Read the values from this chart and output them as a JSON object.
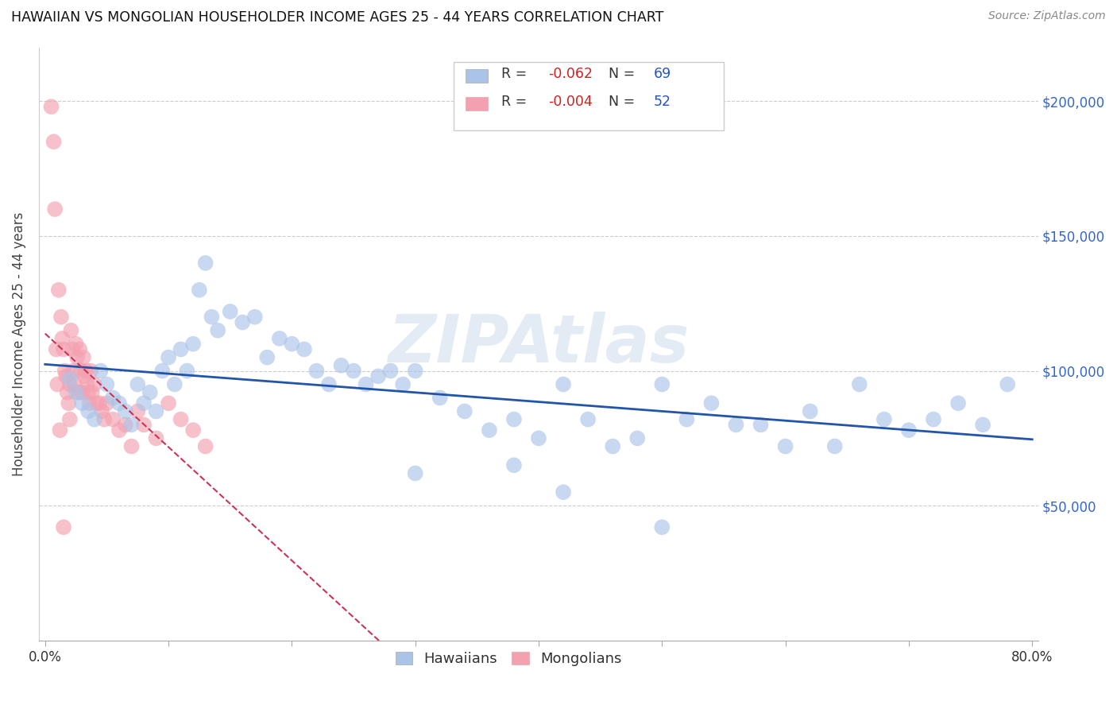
{
  "title": "HAWAIIAN VS MONGOLIAN HOUSEHOLDER INCOME AGES 25 - 44 YEARS CORRELATION CHART",
  "source": "Source: ZipAtlas.com",
  "ylabel_label": "Householder Income Ages 25 - 44 years",
  "ylabel_ticks": [
    0,
    50000,
    100000,
    150000,
    200000
  ],
  "ylabel_tick_labels": [
    "",
    "$50,000",
    "$100,000",
    "$150,000",
    "$200,000"
  ],
  "xlim": [
    -0.005,
    0.805
  ],
  "ylim": [
    0,
    220000
  ],
  "watermark": "ZIPAtlas",
  "blue_color": "#aac4e8",
  "pink_color": "#f4a0b0",
  "blue_line_color": "#2255aa",
  "pink_line_color": "#cc3355",
  "hawaiians_x": [
    0.02,
    0.025,
    0.03,
    0.035,
    0.04,
    0.045,
    0.05,
    0.055,
    0.06,
    0.065,
    0.07,
    0.075,
    0.08,
    0.085,
    0.09,
    0.095,
    0.1,
    0.105,
    0.11,
    0.115,
    0.12,
    0.125,
    0.13,
    0.135,
    0.14,
    0.15,
    0.16,
    0.17,
    0.18,
    0.19,
    0.2,
    0.21,
    0.22,
    0.23,
    0.24,
    0.25,
    0.26,
    0.27,
    0.28,
    0.29,
    0.3,
    0.32,
    0.34,
    0.36,
    0.38,
    0.4,
    0.42,
    0.44,
    0.46,
    0.48,
    0.5,
    0.52,
    0.54,
    0.56,
    0.58,
    0.6,
    0.62,
    0.64,
    0.66,
    0.68,
    0.7,
    0.72,
    0.74,
    0.76,
    0.78,
    0.38,
    0.42,
    0.5,
    0.3
  ],
  "hawaiians_y": [
    97000,
    92000,
    88000,
    85000,
    82000,
    100000,
    95000,
    90000,
    88000,
    85000,
    80000,
    95000,
    88000,
    92000,
    85000,
    100000,
    105000,
    95000,
    108000,
    100000,
    110000,
    130000,
    140000,
    120000,
    115000,
    122000,
    118000,
    120000,
    105000,
    112000,
    110000,
    108000,
    100000,
    95000,
    102000,
    100000,
    95000,
    98000,
    100000,
    95000,
    100000,
    90000,
    85000,
    78000,
    82000,
    75000,
    95000,
    82000,
    72000,
    75000,
    95000,
    82000,
    88000,
    80000,
    80000,
    72000,
    85000,
    72000,
    95000,
    82000,
    78000,
    82000,
    88000,
    80000,
    95000,
    65000,
    55000,
    42000,
    62000
  ],
  "mongolians_x": [
    0.005,
    0.007,
    0.009,
    0.01,
    0.012,
    0.013,
    0.014,
    0.015,
    0.016,
    0.017,
    0.018,
    0.019,
    0.02,
    0.021,
    0.022,
    0.023,
    0.024,
    0.025,
    0.026,
    0.027,
    0.028,
    0.029,
    0.03,
    0.031,
    0.032,
    0.033,
    0.034,
    0.035,
    0.036,
    0.037,
    0.038,
    0.04,
    0.042,
    0.044,
    0.046,
    0.048,
    0.05,
    0.055,
    0.06,
    0.065,
    0.07,
    0.075,
    0.08,
    0.09,
    0.1,
    0.11,
    0.12,
    0.13,
    0.008,
    0.011,
    0.015,
    0.02
  ],
  "mongolians_y": [
    198000,
    185000,
    108000,
    95000,
    78000,
    120000,
    112000,
    108000,
    100000,
    98000,
    92000,
    88000,
    82000,
    115000,
    108000,
    100000,
    95000,
    110000,
    105000,
    92000,
    108000,
    100000,
    92000,
    105000,
    98000,
    100000,
    95000,
    92000,
    88000,
    100000,
    92000,
    95000,
    88000,
    88000,
    85000,
    82000,
    88000,
    82000,
    78000,
    80000,
    72000,
    85000,
    80000,
    75000,
    88000,
    82000,
    78000,
    72000,
    160000,
    130000,
    42000,
    95000
  ]
}
